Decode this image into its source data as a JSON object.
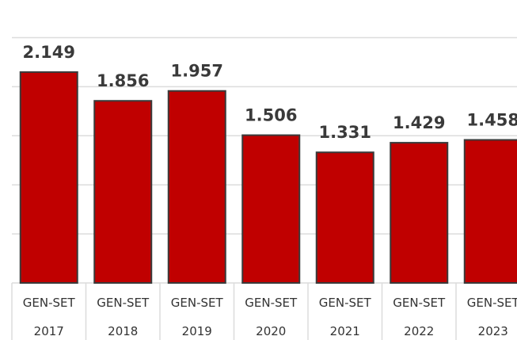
{
  "chart_data": {
    "type": "bar",
    "categories": [
      "GEN-SET\n2017",
      "GEN-SET\n2018",
      "GEN-SET\n2019",
      "GEN-SET\n2020",
      "GEN-SET\n2021",
      "GEN-SET\n2022",
      "GEN-SET\n2023"
    ],
    "values": [
      2.149,
      1.856,
      1.957,
      1.506,
      1.331,
      1.429,
      1.458
    ],
    "color": "#c00000",
    "ylim": [
      0,
      2.5
    ],
    "yticks": [
      0,
      0.5,
      1,
      1.5,
      2,
      2.5
    ],
    "grid": true
  }
}
